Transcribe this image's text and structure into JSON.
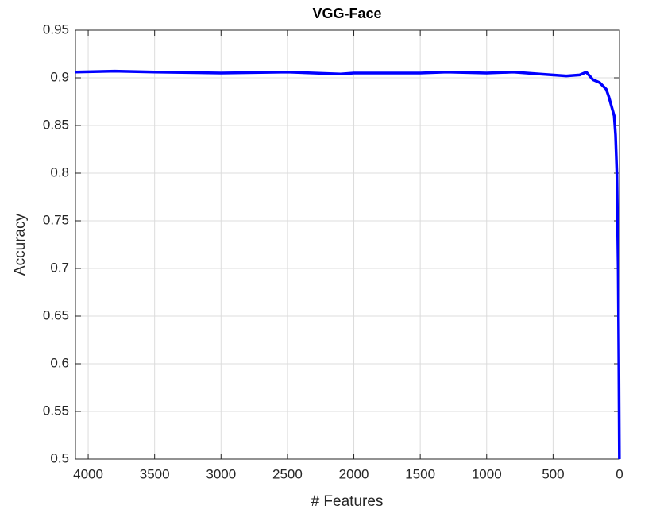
{
  "chart_data": {
    "type": "line",
    "title": "VGG-Face",
    "x_label": "# Features",
    "y_label": "Accuracy",
    "x": [
      4096,
      3800,
      3500,
      3000,
      2500,
      2100,
      2000,
      1500,
      1300,
      1000,
      800,
      600,
      400,
      300,
      250,
      200,
      150,
      100,
      80,
      60,
      40,
      30,
      20,
      10,
      5,
      1
    ],
    "series": [
      {
        "name": "VGG-Face",
        "color": "#0000ff",
        "values": [
          0.906,
          0.907,
          0.906,
          0.905,
          0.906,
          0.904,
          0.905,
          0.905,
          0.906,
          0.905,
          0.906,
          0.904,
          0.902,
          0.903,
          0.906,
          0.898,
          0.895,
          0.888,
          0.88,
          0.87,
          0.86,
          0.84,
          0.8,
          0.7,
          0.6,
          0.5
        ]
      }
    ],
    "xlim": [
      4096,
      0
    ],
    "xticks": [
      4000,
      3500,
      3000,
      2500,
      2000,
      1500,
      1000,
      500,
      0
    ],
    "ylim": [
      0.5,
      0.95
    ],
    "yticks": [
      0.5,
      0.55,
      0.6,
      0.65,
      0.7,
      0.75,
      0.8,
      0.85,
      0.9,
      0.95
    ],
    "grid": true
  }
}
